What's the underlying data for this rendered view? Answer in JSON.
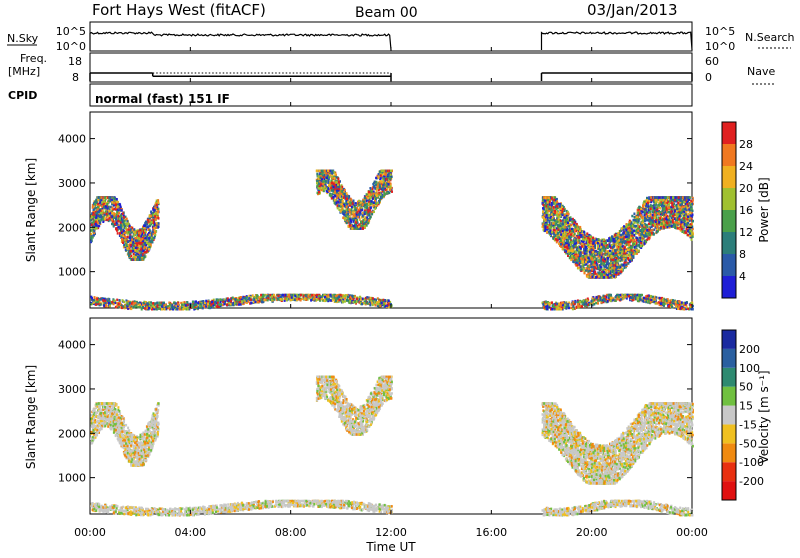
{
  "header": {
    "station": "Fort Hays West (fitACF)",
    "beam": "Beam 00",
    "date": "03/Jan/2013"
  },
  "noise_panel": {
    "left_label": "N.Sky",
    "right_label": "N.Search",
    "left_ticks": [
      "10^5",
      "10^0"
    ],
    "right_ticks": [
      "10^5",
      "10^0"
    ]
  },
  "freq_panel": {
    "left_label_line1": "Freq.",
    "left_label_line2": "[MHz]",
    "right_label": "Nave",
    "left_ticks": [
      "18",
      "8"
    ],
    "right_ticks": [
      "60",
      "0"
    ]
  },
  "cpid": {
    "label": "CPID",
    "mode": "normal (fast) 151 IF"
  },
  "power_panel": {
    "ylabel": "Slant Range [km]",
    "yticks": [
      "4000",
      "3000",
      "2000",
      "1000"
    ],
    "colorbar_label": "Power [dB]",
    "colorbar_ticks": [
      "28",
      "24",
      "20",
      "16",
      "12",
      "8",
      "4"
    ],
    "colors": [
      "#1f1fd6",
      "#2a5aa8",
      "#2c7e7a",
      "#4aa04a",
      "#a0c030",
      "#f0b020",
      "#f07820",
      "#e02020"
    ]
  },
  "velocity_panel": {
    "ylabel": "Slant Range [km]",
    "yticks": [
      "4000",
      "3000",
      "2000",
      "1000"
    ],
    "colorbar_label": "Velocity [m s⁻¹]",
    "colorbar_ticks": [
      "200",
      "100",
      "50",
      "15",
      "-15",
      "-50",
      "-100",
      "-200"
    ],
    "colors": [
      "#1a2aa0",
      "#2a5fa0",
      "#2e8a70",
      "#70c040",
      "#c8c8c8",
      "#f0c020",
      "#f08a10",
      "#e83010",
      "#e01010"
    ]
  },
  "x_axis": {
    "ticks": [
      "00:00",
      "04:00",
      "08:00",
      "12:00",
      "16:00",
      "20:00",
      "00:00"
    ],
    "label": "Time UT"
  },
  "chart_data": {
    "type": "heatmap",
    "x_range_hours": [
      0,
      24
    ],
    "y_range_km": [
      180,
      4600
    ],
    "scatter_regions": [
      {
        "t_start": 0.0,
        "t_end": 2.7,
        "range_low_km": 1300,
        "range_high_km": 2700,
        "power_dB": "4-28"
      },
      {
        "t_start": 9.0,
        "t_end": 12.0,
        "range_low_km": 2000,
        "range_high_km": 3300,
        "power_dB": "4-24"
      },
      {
        "t_start": 18.0,
        "t_end": 24.0,
        "range_low_km": 900,
        "range_high_km": 2700,
        "power_dB": "4-28"
      },
      {
        "t_start": 0.0,
        "t_end": 12.0,
        "range_low_km": 180,
        "range_high_km": 500,
        "power_dB": "4-16"
      },
      {
        "t_start": 18.0,
        "t_end": 24.0,
        "range_low_km": 180,
        "range_high_km": 500,
        "power_dB": "4-16"
      }
    ],
    "operating_intervals_hours": [
      [
        0,
        12
      ],
      [
        18,
        24
      ]
    ],
    "frequency_MHz": [
      {
        "t_start": 0,
        "t_end": 2.5,
        "value": 13
      },
      {
        "t_start": 2.5,
        "t_end": 12,
        "value": 11
      },
      {
        "t_start": 18,
        "t_end": 24,
        "value": 13
      }
    ]
  }
}
